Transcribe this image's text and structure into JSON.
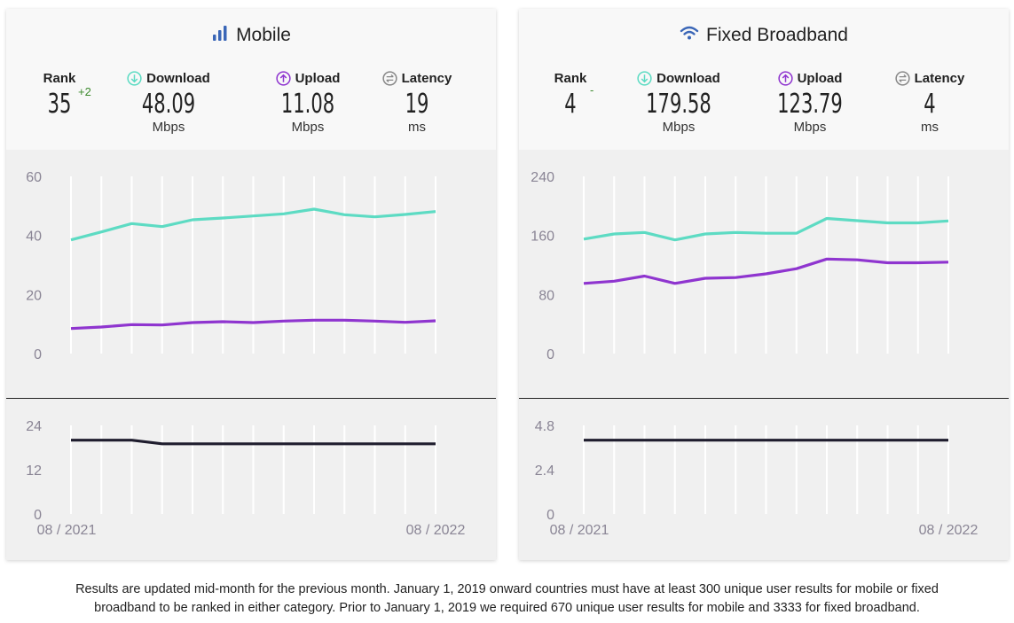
{
  "panels": [
    {
      "title": "Mobile",
      "icon": "signal-bars-icon",
      "rank": {
        "label": "Rank",
        "value": "35",
        "change": "+2"
      },
      "download": {
        "label": "Download",
        "value": "48.09",
        "unit": "Mbps"
      },
      "upload": {
        "label": "Upload",
        "value": "11.08",
        "unit": "Mbps"
      },
      "latency": {
        "label": "Latency",
        "value": "19",
        "unit": "ms"
      }
    },
    {
      "title": "Fixed Broadband",
      "icon": "wifi-icon",
      "rank": {
        "label": "Rank",
        "value": "4",
        "change": "-"
      },
      "download": {
        "label": "Download",
        "value": "179.58",
        "unit": "Mbps"
      },
      "upload": {
        "label": "Upload",
        "value": "123.79",
        "unit": "Mbps"
      },
      "latency": {
        "label": "Latency",
        "value": "4",
        "unit": "ms"
      }
    }
  ],
  "colors": {
    "download": "#5ddbc3",
    "upload": "#8f35cf",
    "latency": "#1f1d2e",
    "grid": "#ffffff",
    "axis_text": "#8a8595"
  },
  "chart_data": [
    {
      "type": "line",
      "panel": "Mobile",
      "title": "",
      "x_labels": [
        "08 / 2021",
        "08 / 2022"
      ],
      "x": [
        "08/2021",
        "09/2021",
        "10/2021",
        "11/2021",
        "12/2021",
        "01/2022",
        "02/2022",
        "03/2022",
        "04/2022",
        "05/2022",
        "06/2022",
        "07/2022",
        "08/2022"
      ],
      "ylim": [
        0,
        60
      ],
      "yticks": [
        "0",
        "20",
        "40",
        "60"
      ],
      "series": [
        {
          "name": "Download",
          "values": [
            38.5,
            41.2,
            44.0,
            43.0,
            45.3,
            45.9,
            46.6,
            47.3,
            48.9,
            47.0,
            46.3,
            47.1,
            48.1
          ]
        },
        {
          "name": "Upload",
          "values": [
            8.5,
            9.0,
            9.8,
            9.7,
            10.5,
            10.8,
            10.5,
            11.0,
            11.3,
            11.3,
            11.0,
            10.6,
            11.1
          ]
        }
      ]
    },
    {
      "type": "line",
      "panel": "Mobile",
      "title": "",
      "x": [
        "08/2021",
        "09/2021",
        "10/2021",
        "11/2021",
        "12/2021",
        "01/2022",
        "02/2022",
        "03/2022",
        "04/2022",
        "05/2022",
        "06/2022",
        "07/2022",
        "08/2022"
      ],
      "ylim": [
        0,
        24
      ],
      "yticks": [
        "0",
        "12",
        "24"
      ],
      "series": [
        {
          "name": "Latency",
          "values": [
            20,
            20,
            20,
            19,
            19,
            19,
            19,
            19,
            19,
            19,
            19,
            19,
            19
          ]
        }
      ]
    },
    {
      "type": "line",
      "panel": "Fixed Broadband",
      "title": "",
      "x_labels": [
        "08 / 2021",
        "08 / 2022"
      ],
      "x": [
        "08/2021",
        "09/2021",
        "10/2021",
        "11/2021",
        "12/2021",
        "01/2022",
        "02/2022",
        "03/2022",
        "04/2022",
        "05/2022",
        "06/2022",
        "07/2022",
        "08/2022"
      ],
      "ylim": [
        0,
        240
      ],
      "yticks": [
        "0",
        "80",
        "160",
        "240"
      ],
      "series": [
        {
          "name": "Download",
          "values": [
            155,
            162,
            164,
            154,
            162,
            164,
            163,
            163,
            183,
            180,
            177,
            177,
            179.6
          ]
        },
        {
          "name": "Upload",
          "values": [
            95,
            98,
            105,
            95,
            102,
            103,
            108,
            115,
            128,
            127,
            123,
            123,
            123.8
          ]
        }
      ]
    },
    {
      "type": "line",
      "panel": "Fixed Broadband",
      "title": "",
      "x": [
        "08/2021",
        "09/2021",
        "10/2021",
        "11/2021",
        "12/2021",
        "01/2022",
        "02/2022",
        "03/2022",
        "04/2022",
        "05/2022",
        "06/2022",
        "07/2022",
        "08/2022"
      ],
      "ylim": [
        0,
        4.8
      ],
      "yticks": [
        "0",
        "2.4",
        "4.8"
      ],
      "series": [
        {
          "name": "Latency",
          "values": [
            4,
            4,
            4,
            4,
            4,
            4,
            4,
            4,
            4,
            4,
            4,
            4,
            4
          ]
        }
      ]
    }
  ],
  "footer": {
    "line1": "Results are updated mid-month for the previous month. January 1, 2019 onward countries must have at least 300 unique user results for mobile or fixed",
    "line2": "broadband to be ranked in either category. Prior to January 1, 2019 we required 670 unique user results for mobile and 3333 for fixed broadband."
  }
}
